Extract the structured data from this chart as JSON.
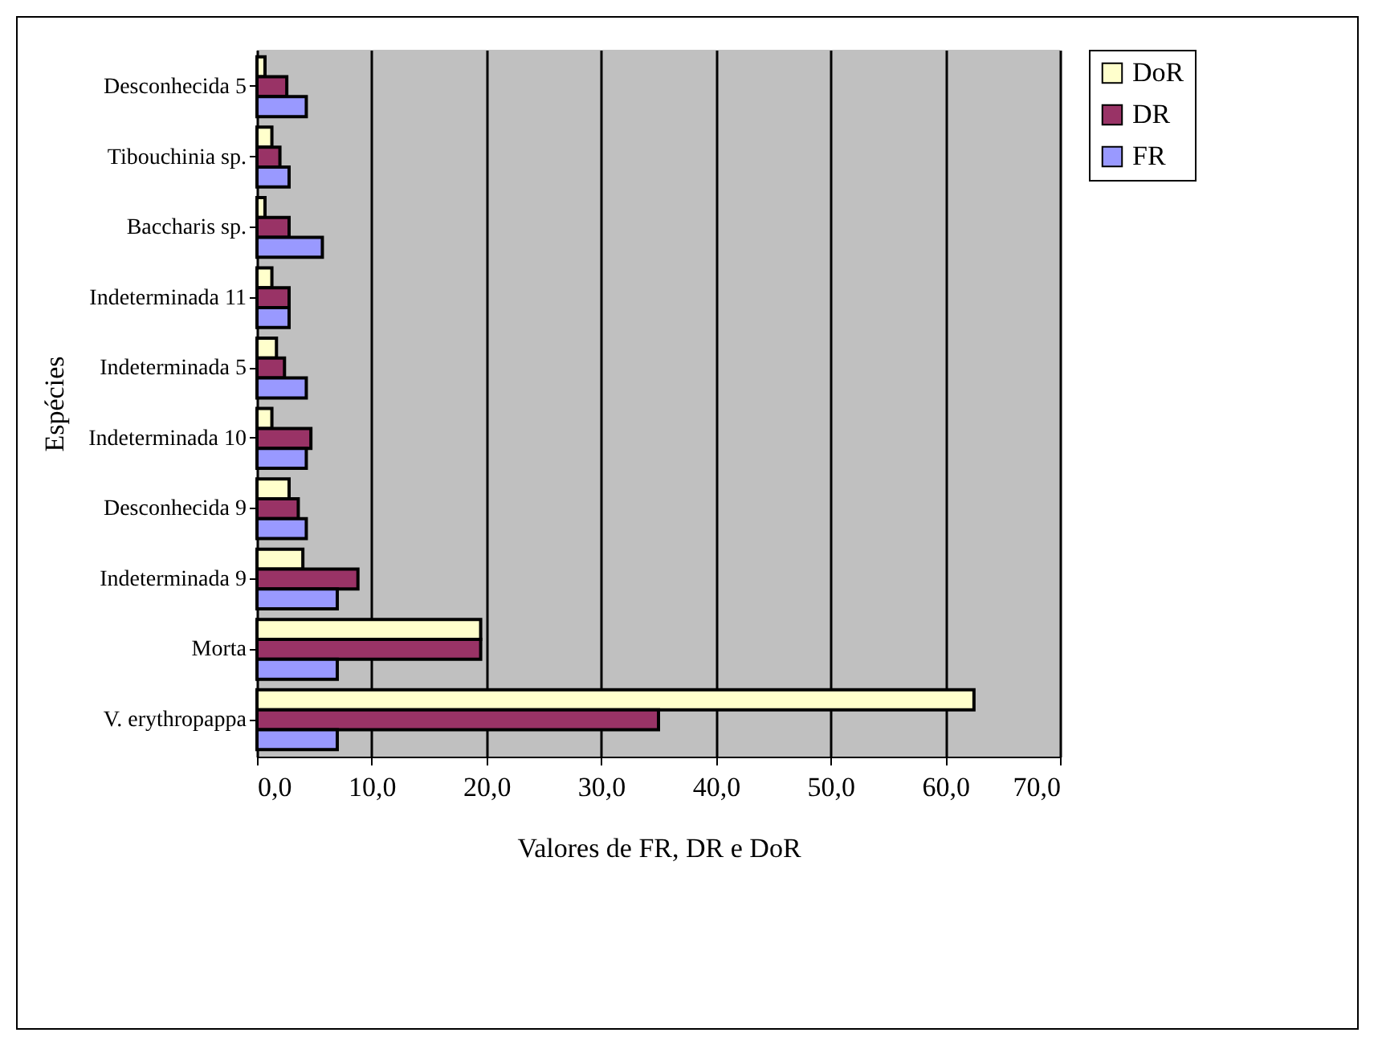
{
  "chart_data": {
    "type": "bar",
    "orientation": "horizontal",
    "xlabel": "Valores de FR, DR e DoR",
    "ylabel": "Espécies",
    "categories": [
      "Desconhecida 5",
      "Tibouchinia sp.",
      "Baccharis sp.",
      "Indeterminada 11",
      "Indeterminada 5",
      "Indeterminada  10",
      "Desconhecida 9",
      "Indeterminada 9",
      "Morta",
      "V. erythropappa"
    ],
    "series": [
      {
        "name": "DoR",
        "color": "#ffffcc",
        "values": [
          0.7,
          1.3,
          0.7,
          1.3,
          1.7,
          1.3,
          2.8,
          4.0,
          19.5,
          62.5
        ]
      },
      {
        "name": "DR",
        "color": "#993366",
        "values": [
          2.6,
          2.0,
          2.8,
          2.8,
          2.4,
          4.7,
          3.6,
          8.8,
          19.5,
          35.0
        ]
      },
      {
        "name": "FR",
        "color": "#9999ff",
        "values": [
          4.3,
          2.8,
          5.7,
          2.8,
          4.3,
          4.3,
          4.3,
          7.0,
          7.0,
          7.0
        ]
      }
    ],
    "xlim": [
      0,
      70
    ],
    "xticks": [
      {
        "value": 0,
        "label": "0,0"
      },
      {
        "value": 10,
        "label": "10,0"
      },
      {
        "value": 20,
        "label": "20,0"
      },
      {
        "value": 30,
        "label": "30,0"
      },
      {
        "value": 40,
        "label": "40,0"
      },
      {
        "value": 50,
        "label": "50,0"
      },
      {
        "value": 60,
        "label": "60,0"
      },
      {
        "value": 70,
        "label": "70,0"
      }
    ],
    "grid": "x",
    "legend": "right"
  }
}
